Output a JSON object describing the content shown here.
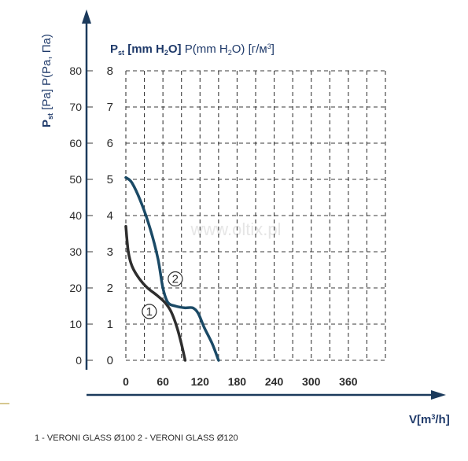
{
  "chart_data": {
    "type": "line",
    "title": "",
    "y_left_title": {
      "p": "P",
      "sub": "st",
      "rest": " [Pa] P(Pa, Па)"
    },
    "y_right_title": {
      "p": "P",
      "sub": "st",
      "bold": " [mm H",
      "bold_sub": "2",
      "bold_end": "O]",
      "rest": " P(mm H",
      "rest_sub": "2",
      "rest_mid": "O) [г/м",
      "rest_sup": "3",
      "rest_end": "]"
    },
    "xlabel": {
      "main": "V[m",
      "sup": "3",
      "end": "/h]"
    },
    "x_ticks": [
      0,
      60,
      120,
      180,
      240,
      300,
      360
    ],
    "y_ticks_pa": [
      0,
      10,
      20,
      30,
      40,
      50,
      60,
      70,
      80
    ],
    "y_ticks_mm": [
      0,
      1,
      2,
      3,
      4,
      5,
      6,
      7,
      8
    ],
    "xlim": [
      0,
      420
    ],
    "ylim": [
      0,
      8
    ],
    "grid": true,
    "series": [
      {
        "name": "1",
        "color": "#2e2e2e",
        "points": [
          [
            0,
            3.7
          ],
          [
            4,
            3.0
          ],
          [
            10,
            2.6
          ],
          [
            22,
            2.25
          ],
          [
            35,
            2.0
          ],
          [
            50,
            1.8
          ],
          [
            63,
            1.6
          ],
          [
            73,
            1.35
          ],
          [
            82,
            0.95
          ],
          [
            90,
            0.45
          ],
          [
            96,
            0.0
          ]
        ]
      },
      {
        "name": "2",
        "color": "#1b4a66",
        "points": [
          [
            0,
            5.05
          ],
          [
            10,
            4.9
          ],
          [
            25,
            4.35
          ],
          [
            40,
            3.6
          ],
          [
            52,
            2.8
          ],
          [
            60,
            2.0
          ],
          [
            68,
            1.6
          ],
          [
            80,
            1.5
          ],
          [
            95,
            1.45
          ],
          [
            108,
            1.45
          ],
          [
            117,
            1.3
          ],
          [
            127,
            0.9
          ],
          [
            140,
            0.45
          ],
          [
            150,
            0.0
          ]
        ]
      }
    ],
    "curve_labels": [
      {
        "series": "1",
        "text": "1",
        "x": 38,
        "y": 1.35
      },
      {
        "series": "2",
        "text": "2",
        "x": 80,
        "y": 2.25
      }
    ]
  },
  "legend_text": "1 - VERONI GLASS Ø100   2 - VERONI GLASS Ø120",
  "watermark": "www.oltix.pl"
}
